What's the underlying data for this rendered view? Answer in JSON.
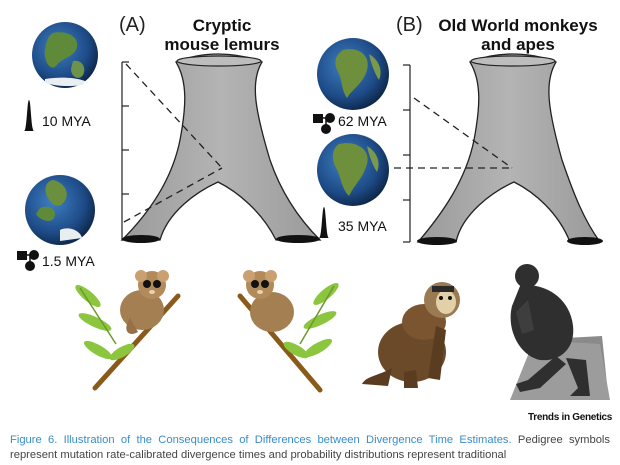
{
  "panel_a": {
    "letter": "(A)",
    "title_line1": "Cryptic",
    "title_line2": "mouse lemurs",
    "label_top": "10 MYA",
    "label_bottom": "1.5 MYA"
  },
  "panel_b": {
    "letter": "(B)",
    "title_line1": "Old World monkeys",
    "title_line2": "and apes",
    "label_top": "62 MYA",
    "label_bottom": "35 MYA"
  },
  "brand": "Trends in Genetics",
  "caption": {
    "figure_title": "Figure 6. Illustration of the Consequences of Differences between Divergence Time Estimates.",
    "body": "Pedigree symbols represent mutation rate-calibrated divergence times and probability distributions represent traditional"
  },
  "colors": {
    "tree": "#a9a9a9",
    "tree_outline": "#222222",
    "ocean": "#1f4f8a",
    "land": "#5e8a3a",
    "caption_title": "#3a8dc8"
  }
}
